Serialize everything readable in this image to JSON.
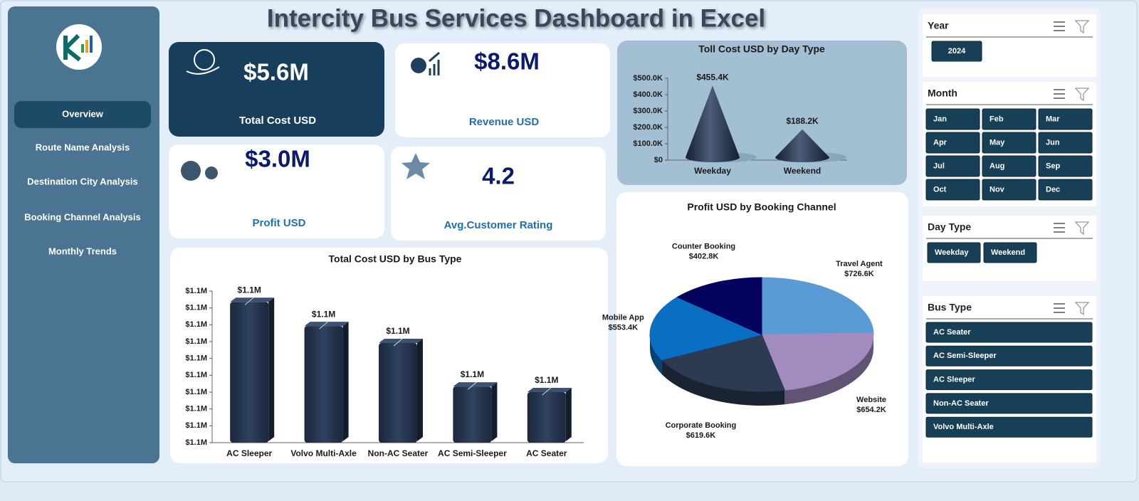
{
  "header": {
    "title": "Intercity Bus Services Dashboard in Excel"
  },
  "nav": {
    "items": [
      "Overview",
      "Route Name Analysis",
      "Destination City  Analysis",
      "Booking Channel Analysis",
      "Monthly Trends"
    ],
    "active": 0
  },
  "kpis": [
    {
      "value": "$5.6M",
      "label": "Total  Cost USD"
    },
    {
      "value": "$8.6M",
      "label": "Revenue USD"
    },
    {
      "value": "$3.0M",
      "label": "Profit USD"
    },
    {
      "value": 4.2,
      "label": "Avg.Customer Rating"
    }
  ],
  "chart_data": [
    {
      "type": "cone",
      "title": "Toll Cost USD by Day Type",
      "categories": [
        "Weekday",
        "Weekend"
      ],
      "values": [
        455400,
        188200
      ],
      "value_labels": [
        "$455.4K",
        "$188.2K"
      ],
      "color": "#2b3a52",
      "ylim": [
        0,
        500000
      ],
      "yticks": [
        {
          "value": 0,
          "label": "$0"
        },
        {
          "value": 100000,
          "label": "$100.0K"
        },
        {
          "value": 200000,
          "label": "$200.0K"
        },
        {
          "value": 300000,
          "label": "$300.0K"
        },
        {
          "value": 400000,
          "label": "$400.0K"
        },
        {
          "value": 500000,
          "label": "$500.0K"
        }
      ]
    },
    {
      "type": "pie",
      "title": "Profit USD by Booking Channel",
      "categories": [
        "Travel Agent",
        "Website",
        "Corporate Booking",
        "Mobile App",
        "Counter Booking"
      ],
      "values": [
        726600,
        654200,
        619600,
        553400,
        402800
      ],
      "value_labels": [
        "$726.6K",
        "$654.2K",
        "$619.6K",
        "$553.4K",
        "$402.8K"
      ],
      "colors": [
        "#5b9bd5",
        "#a18bbf",
        "#2c3a52",
        "#0a6fc2",
        "#03035e"
      ]
    },
    {
      "type": "bar",
      "title": "Total Cost USD by Bus Type",
      "categories": [
        "AC Sleeper",
        "Volvo Multi-Axle",
        "Non-AC Seater",
        "AC Semi-Sleeper",
        "AC Seater"
      ],
      "values": [
        1137500,
        1124600,
        1115500,
        1092300,
        1089300
      ],
      "value_labels": [
        "$1.1M",
        "$1.1M",
        "$1.1M",
        "$1.1M",
        "$1.1M"
      ],
      "color": "#23324a",
      "ylim": [
        1060000,
        1141000
      ],
      "yticks": [
        {
          "value": 1060000,
          "label": "$1.1M"
        },
        {
          "value": 1069000,
          "label": "$1.1M"
        },
        {
          "value": 1078000,
          "label": "$1.1M"
        },
        {
          "value": 1087000,
          "label": "$1.1M"
        },
        {
          "value": 1096000,
          "label": "$1.1M"
        },
        {
          "value": 1105000,
          "label": "$1.1M"
        },
        {
          "value": 1114000,
          "label": "$1.1M"
        },
        {
          "value": 1123000,
          "label": "$1.1M"
        },
        {
          "value": 1132000,
          "label": "$1.1M"
        },
        {
          "value": 1141000,
          "label": "$1.1M"
        }
      ]
    }
  ],
  "slicers": [
    {
      "title": "Year",
      "items": [
        "2024"
      ]
    },
    {
      "title": "Month",
      "items": [
        "Jan",
        "Feb",
        "Mar",
        "Apr",
        "May",
        "Jun",
        "Jul",
        "Aug",
        "Sep",
        "Oct",
        "Nov",
        "Dec"
      ]
    },
    {
      "title": "Day Type",
      "items": [
        "Weekday",
        "Weekend"
      ]
    },
    {
      "title": "Bus Type",
      "items": [
        "AC Seater",
        "AC Semi-Sleeper",
        "AC Sleeper",
        "Non-AC Seater",
        "Volvo Multi-Axle"
      ]
    }
  ]
}
